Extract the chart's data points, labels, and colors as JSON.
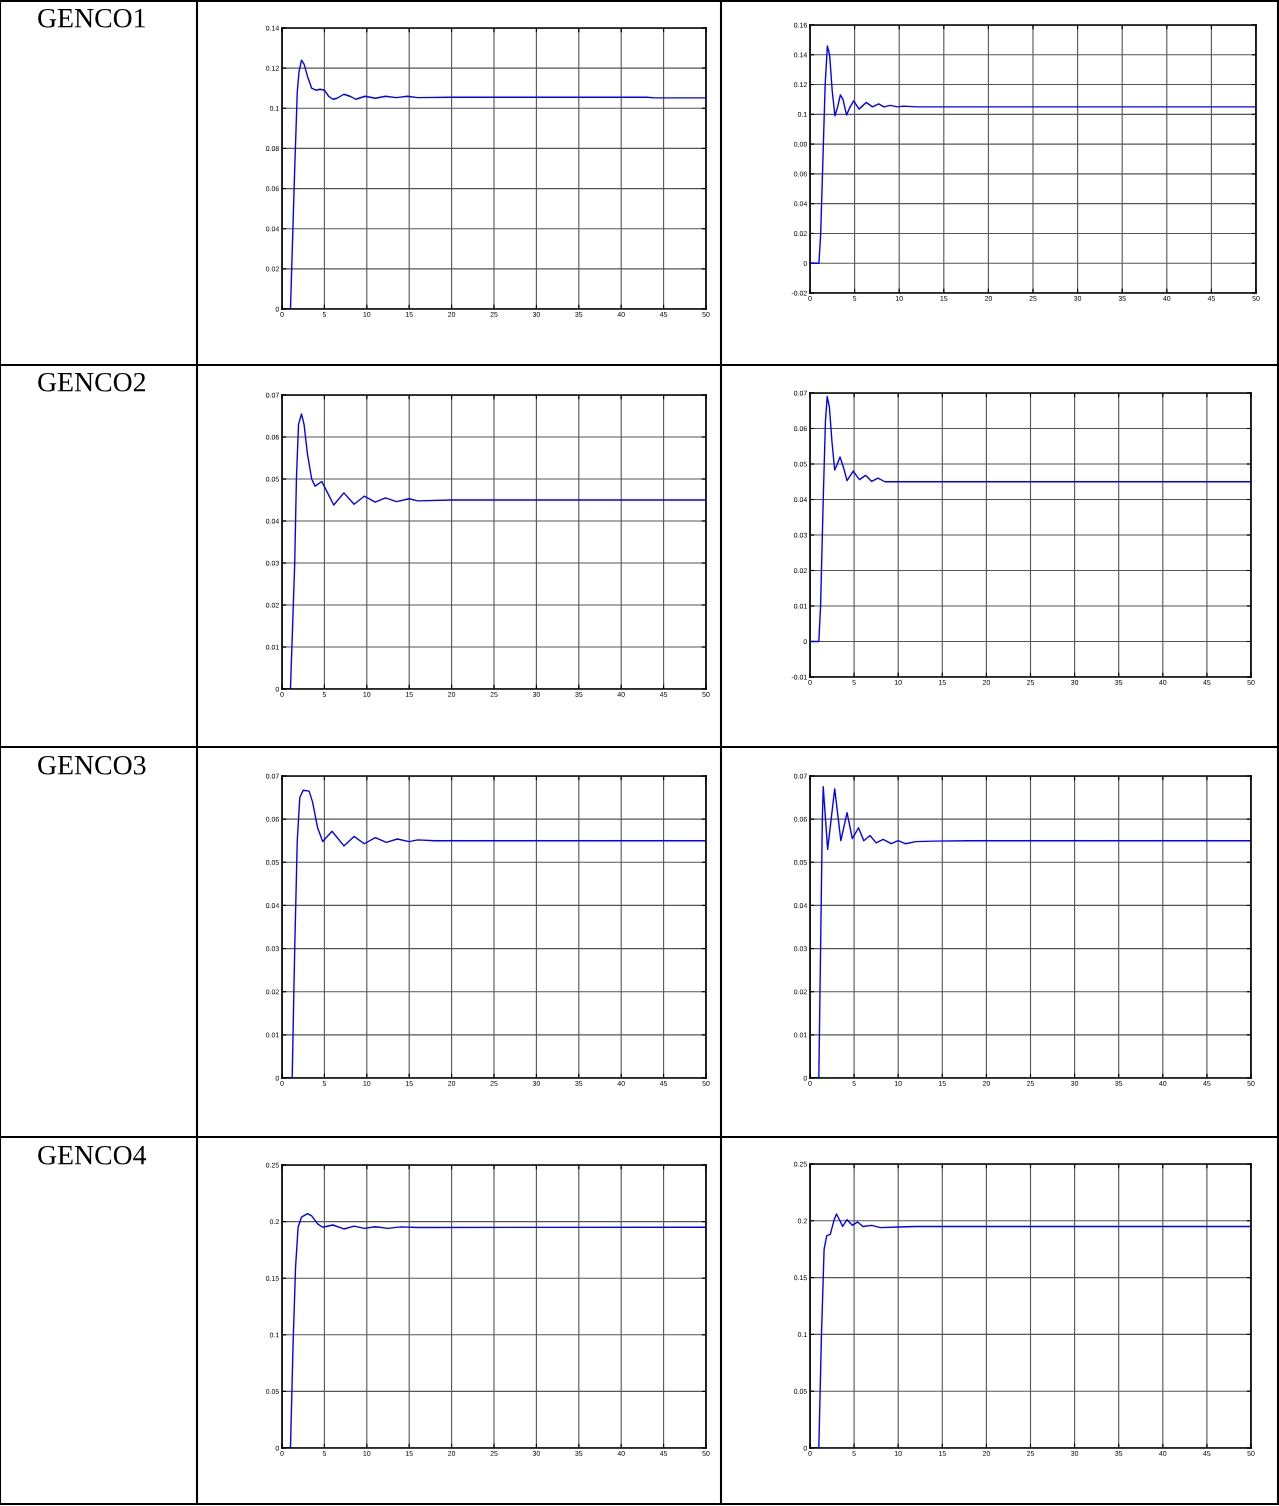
{
  "chart_data": [
    {
      "type": "line",
      "title": "GENCO1",
      "xlim": [
        0,
        50
      ],
      "ylim": [
        0,
        0.14
      ],
      "xticks": [
        0,
        5,
        10,
        15,
        20,
        25,
        30,
        35,
        40,
        45,
        50
      ],
      "yticks": [
        0,
        0.02,
        0.04,
        0.06,
        0.08,
        0.1,
        0.12,
        0.14
      ],
      "grid": true,
      "x": [
        0,
        1,
        1.5,
        1.8,
        2.0,
        2.3,
        2.6,
        3.0,
        3.5,
        4.0,
        4.5,
        5,
        5.5,
        6,
        6.5,
        7.3,
        8,
        8.7,
        9.8,
        11,
        12.2,
        13.5,
        14.8,
        16,
        20,
        43,
        44,
        50
      ],
      "series": [
        {
          "color": "#0000ff",
          "values": [
            0,
            0,
            0.07,
            0.108,
            0.118,
            0.124,
            0.122,
            0.116,
            0.11,
            0.109,
            0.1095,
            0.109,
            0.106,
            0.1045,
            0.105,
            0.107,
            0.106,
            0.1045,
            0.106,
            0.105,
            0.106,
            0.1053,
            0.106,
            0.1053,
            0.1055,
            0.1055,
            0.1052,
            0.1052
          ]
        }
      ]
    },
    {
      "type": "line",
      "xlim": [
        0,
        50
      ],
      "ylim": [
        -0.02,
        0.16
      ],
      "xticks": [
        0,
        5,
        10,
        15,
        20,
        25,
        30,
        35,
        40,
        45,
        50
      ],
      "yticks": [
        -0.02,
        0,
        0.02,
        0.04,
        0.06,
        0.08,
        0.1,
        0.12,
        0.14,
        0.16
      ],
      "grid": true,
      "x": [
        0,
        1,
        1.2,
        1.5,
        1.7,
        1.95,
        2.2,
        2.5,
        2.8,
        3.1,
        3.4,
        3.7,
        4.1,
        4.5,
        4.9,
        5.5,
        6.3,
        7.0,
        7.7,
        8.3,
        9.0,
        9.8,
        10.5,
        12,
        50
      ],
      "series": [
        {
          "color": "#0000ff",
          "values": [
            0,
            0,
            0.02,
            0.08,
            0.12,
            0.146,
            0.14,
            0.115,
            0.099,
            0.105,
            0.113,
            0.11,
            0.0995,
            0.105,
            0.109,
            0.1035,
            0.108,
            0.105,
            0.107,
            0.105,
            0.106,
            0.105,
            0.1055,
            0.105,
            0.105
          ]
        }
      ]
    },
    {
      "type": "line",
      "title": "GENCO2",
      "xlim": [
        0,
        50
      ],
      "ylim": [
        0,
        0.07
      ],
      "xticks": [
        0,
        5,
        10,
        15,
        20,
        25,
        30,
        35,
        40,
        45,
        50
      ],
      "yticks": [
        0,
        0.01,
        0.02,
        0.03,
        0.04,
        0.05,
        0.06,
        0.07
      ],
      "grid": true,
      "x": [
        0,
        1,
        1.5,
        1.7,
        1.95,
        2.3,
        2.6,
        3.0,
        3.5,
        3.9,
        4.7,
        5.3,
        6.1,
        7.3,
        8.5,
        9.7,
        11,
        12.2,
        13.5,
        15,
        16,
        20,
        50
      ],
      "series": [
        {
          "color": "#0000ff",
          "values": [
            0,
            0,
            0.03,
            0.05,
            0.063,
            0.0655,
            0.063,
            0.056,
            0.05,
            0.0483,
            0.0494,
            0.047,
            0.0438,
            0.0467,
            0.044,
            0.0459,
            0.0445,
            0.0455,
            0.0446,
            0.0453,
            0.0448,
            0.045,
            0.045
          ]
        }
      ]
    },
    {
      "type": "line",
      "xlim": [
        0,
        50
      ],
      "ylim": [
        -0.01,
        0.07
      ],
      "xticks": [
        0,
        5,
        10,
        15,
        20,
        25,
        30,
        35,
        40,
        45,
        50
      ],
      "yticks": [
        -0.01,
        0,
        0.01,
        0.02,
        0.03,
        0.04,
        0.05,
        0.06,
        0.07
      ],
      "grid": true,
      "x": [
        0,
        1,
        1.2,
        1.5,
        1.75,
        1.95,
        2.2,
        2.5,
        2.8,
        3.1,
        3.4,
        3.8,
        4.2,
        4.9,
        5.6,
        6.3,
        7.0,
        7.7,
        8.5,
        10,
        50
      ],
      "series": [
        {
          "color": "#0000ff",
          "values": [
            0,
            0,
            0.01,
            0.04,
            0.062,
            0.069,
            0.066,
            0.056,
            0.0483,
            0.05,
            0.052,
            0.049,
            0.0453,
            0.048,
            0.0456,
            0.0468,
            0.0451,
            0.046,
            0.045,
            0.045,
            0.045
          ]
        }
      ]
    },
    {
      "type": "line",
      "title": "GENCO3",
      "xlim": [
        0,
        50
      ],
      "ylim": [
        0,
        0.07
      ],
      "xticks": [
        0,
        5,
        10,
        15,
        20,
        25,
        30,
        35,
        40,
        45,
        50
      ],
      "yticks": [
        0,
        0.01,
        0.02,
        0.03,
        0.04,
        0.05,
        0.06,
        0.07
      ],
      "grid": true,
      "x": [
        0,
        1.2,
        1.5,
        1.8,
        2.1,
        2.5,
        3.2,
        3.6,
        4.2,
        4.8,
        5.9,
        7.3,
        8.5,
        9.7,
        11,
        12.3,
        13.6,
        15,
        16,
        18,
        50
      ],
      "series": [
        {
          "color": "#0000ff",
          "values": [
            0,
            0,
            0.03,
            0.055,
            0.065,
            0.0667,
            0.0665,
            0.064,
            0.058,
            0.0548,
            0.0572,
            0.0538,
            0.056,
            0.0543,
            0.0557,
            0.0546,
            0.0554,
            0.0548,
            0.0552,
            0.055,
            0.055
          ]
        }
      ]
    },
    {
      "type": "line",
      "xlim": [
        0,
        50
      ],
      "ylim": [
        0,
        0.07
      ],
      "xticks": [
        0,
        5,
        10,
        15,
        20,
        25,
        30,
        35,
        40,
        45,
        50
      ],
      "yticks": [
        0,
        0.01,
        0.02,
        0.03,
        0.04,
        0.05,
        0.06,
        0.07
      ],
      "grid": true,
      "x": [
        0,
        1,
        1.2,
        1.4,
        1.5,
        2.0,
        2.8,
        3.5,
        4.2,
        4.8,
        5.5,
        6.1,
        6.8,
        7.5,
        8.3,
        9.2,
        10,
        10.8,
        12,
        14,
        18,
        50
      ],
      "series": [
        {
          "color": "#0000ff",
          "values": [
            0,
            0,
            0.03,
            0.06,
            0.0675,
            0.053,
            0.067,
            0.055,
            0.0615,
            0.0555,
            0.058,
            0.055,
            0.0562,
            0.0545,
            0.0553,
            0.0543,
            0.055,
            0.0543,
            0.0548,
            0.0549,
            0.055,
            0.055
          ]
        }
      ]
    },
    {
      "type": "line",
      "title": "GENCO4",
      "xlim": [
        0,
        50
      ],
      "ylim": [
        0,
        0.25
      ],
      "xticks": [
        0,
        5,
        10,
        15,
        20,
        25,
        30,
        35,
        40,
        45,
        50
      ],
      "yticks": [
        0,
        0.05,
        0.1,
        0.15,
        0.2,
        0.25
      ],
      "grid": true,
      "x": [
        0,
        1,
        1.3,
        1.6,
        1.9,
        2.3,
        3.0,
        3.5,
        4.2,
        4.8,
        6,
        7.3,
        8.5,
        9.7,
        11,
        12.5,
        14,
        16,
        50
      ],
      "series": [
        {
          "color": "#0000ff",
          "values": [
            0,
            0,
            0.09,
            0.16,
            0.195,
            0.204,
            0.207,
            0.205,
            0.198,
            0.195,
            0.197,
            0.1935,
            0.196,
            0.194,
            0.1955,
            0.194,
            0.1953,
            0.1948,
            0.195
          ]
        }
      ]
    },
    {
      "type": "line",
      "xlim": [
        0,
        50
      ],
      "ylim": [
        0,
        0.25
      ],
      "xticks": [
        0,
        5,
        10,
        15,
        20,
        25,
        30,
        35,
        40,
        45,
        50
      ],
      "yticks": [
        0,
        0.05,
        0.1,
        0.15,
        0.2,
        0.25
      ],
      "grid": true,
      "x": [
        0,
        1,
        1.3,
        1.6,
        1.9,
        2.3,
        2.7,
        3.0,
        3.4,
        3.7,
        4.2,
        4.8,
        5.4,
        6,
        7,
        8,
        10,
        12,
        50
      ],
      "series": [
        {
          "color": "#0000ff",
          "values": [
            0,
            0,
            0.1,
            0.175,
            0.187,
            0.188,
            0.2,
            0.206,
            0.2,
            0.195,
            0.201,
            0.196,
            0.199,
            0.195,
            0.196,
            0.194,
            0.1945,
            0.195,
            0.195
          ]
        }
      ]
    }
  ]
}
